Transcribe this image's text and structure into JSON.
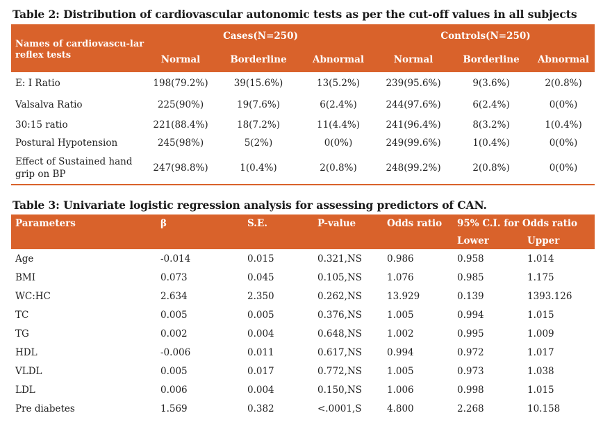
{
  "table2": {
    "caption": "Table 2: Distribution of cardiovascular autonomic tests as per the cut-off values in all subjects",
    "col_header": "Names of cardiovascu-lar reflex tests",
    "groups": [
      "Cases(N=250)",
      "Controls(N=250)"
    ],
    "subheaders": [
      "Normal",
      "Borderline",
      "Abnormal",
      "Normal",
      "Borderline",
      "Abnormal"
    ],
    "rows": [
      {
        "name": "E: I Ratio",
        "values": [
          "198(79.2%)",
          "39(15.6%)",
          "13(5.2%)",
          "239(95.6%)",
          "9(3.6%)",
          "2(0.8%)"
        ]
      },
      {
        "name": "Valsalva Ratio",
        "values": [
          "225(90%)",
          "19(7.6%)",
          "6(2.4%)",
          "244(97.6%)",
          "6(2.4%)",
          "0(0%)"
        ]
      },
      {
        "name": "30:15 ratio",
        "values": [
          "221(88.4%)",
          "18(7.2%)",
          "11(4.4%)",
          "241(96.4%)",
          "8(3.2%)",
          "1(0.4%)"
        ]
      },
      {
        "name": "Postural Hypotension",
        "values": [
          "245(98%)",
          "5(2%)",
          "0(0%)",
          "249(99.6%)",
          "1(0.4%)",
          "0(0%)"
        ]
      },
      {
        "name": "Effect of  Sustained hand grip on BP",
        "values": [
          "247(98.8%)",
          "1(0.4%)",
          "2(0.8%)",
          "248(99.2%)",
          "2(0.8%)",
          "0(0%)"
        ]
      }
    ]
  },
  "table3": {
    "caption": "Table 3: Univariate logistic regression analysis for assessing predictors of CAN.",
    "headers": [
      "Parameters",
      "β",
      "S.E.",
      "P-value",
      "Odds ratio",
      "95% C.I. for Odds ratio"
    ],
    "subheaders": [
      "Lower",
      "Upper"
    ],
    "rows": [
      {
        "name": "Age",
        "values": [
          "-0.014",
          "0.015",
          "0.321,NS",
          "0.986",
          "0.958",
          "1.014"
        ]
      },
      {
        "name": "BMI",
        "values": [
          "0.073",
          "0.045",
          "0.105,NS",
          "1.076",
          "0.985",
          "1.175"
        ]
      },
      {
        "name": "WC:HC",
        "values": [
          "2.634",
          "2.350",
          "0.262,NS",
          "13.929",
          "0.139",
          "1393.126"
        ]
      },
      {
        "name": "TC",
        "values": [
          "0.005",
          "0.005",
          "0.376,NS",
          "1.005",
          "0.994",
          "1.015"
        ]
      },
      {
        "name": "TG",
        "values": [
          "0.002",
          "0.004",
          "0.648,NS",
          "1.002",
          "0.995",
          "1.009"
        ]
      },
      {
        "name": "HDL",
        "values": [
          "-0.006",
          "0.011",
          "0.617,NS",
          "0.994",
          "0.972",
          "1.017"
        ]
      },
      {
        "name": "VLDL",
        "values": [
          "0.005",
          "0.017",
          "0.772,NS",
          "1.005",
          "0.973",
          "1.038"
        ]
      },
      {
        "name": "LDL",
        "values": [
          "0.006",
          "0.004",
          "0.150,NS",
          "1.006",
          "0.998",
          "1.015"
        ]
      },
      {
        "name": "Pre diabetes",
        "values": [
          "1.569",
          "0.382",
          "<.0001,S",
          "4.800",
          "2.268",
          "10.158"
        ]
      }
    ]
  }
}
